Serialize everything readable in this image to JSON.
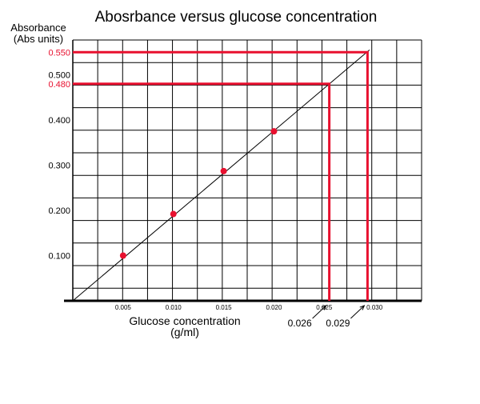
{
  "chart_data": {
    "type": "scatter",
    "title": "Abosrbance versus glucose concentration",
    "ylabel_line1": "Absorbance",
    "ylabel_line2": "(Abs units)",
    "xlabel_line1": "Glucose concentration",
    "xlabel_line2": "(g/ml)",
    "xlim": [
      0,
      0.035
    ],
    "ylim": [
      0,
      0.56
    ],
    "grid": true,
    "x_ticks": [
      "0.005",
      "0.010",
      "0.015",
      "0.020",
      "0.025",
      "0.030"
    ],
    "y_ticks": [
      "0.100",
      "0.200",
      "0.300",
      "0.400",
      "0.500"
    ],
    "points": [
      {
        "x": 0.005,
        "y": 0.1
      },
      {
        "x": 0.01,
        "y": 0.192
      },
      {
        "x": 0.015,
        "y": 0.287
      },
      {
        "x": 0.02,
        "y": 0.375
      }
    ],
    "trendline": {
      "x": [
        0,
        0.0295
      ],
      "y": [
        0,
        0.555
      ]
    },
    "highlight_lines": [
      {
        "y_label": "0.550",
        "y": 0.55,
        "x": 0.0293,
        "x_label": "0.029"
      },
      {
        "y_label": "0.480",
        "y": 0.48,
        "x": 0.0255,
        "x_label": "0.026"
      }
    ],
    "colors": {
      "highlight": "#e8102f",
      "points": "#e8102f",
      "axis": "#000000",
      "grid": "#000000"
    }
  }
}
